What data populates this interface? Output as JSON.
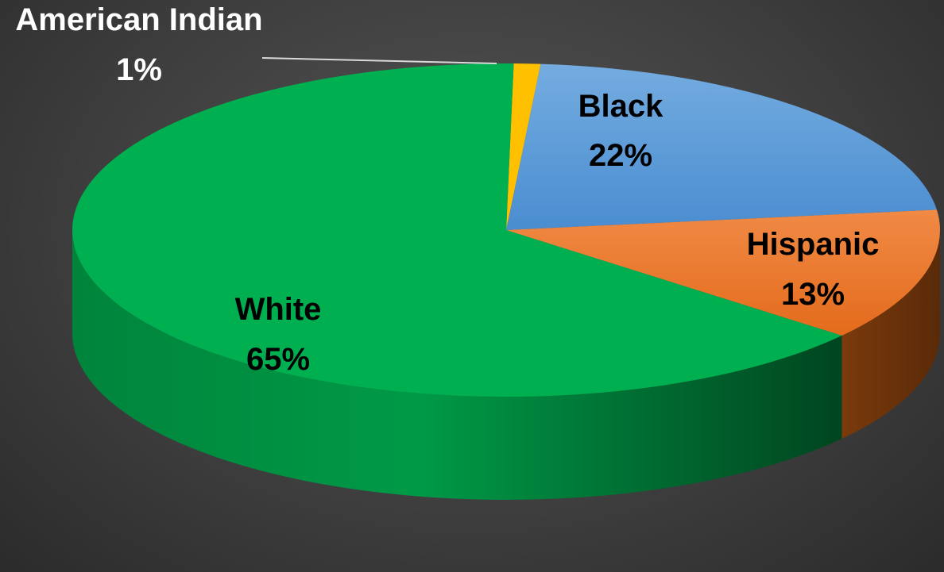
{
  "chart_data": {
    "type": "pie",
    "title": "",
    "style": "3d",
    "slices": [
      {
        "label": "American Indian",
        "value": 1,
        "value_label": "1%",
        "color": "#FFC000",
        "label_color": "#FFFFFF"
      },
      {
        "label": "Black",
        "value": 22,
        "value_label": "22%",
        "color": "#5B9BD5",
        "label_color": "#000000"
      },
      {
        "label": "Hispanic",
        "value": 13,
        "value_label": "13%",
        "color": "#ED7D31",
        "label_color": "#000000"
      },
      {
        "label": "White",
        "value": 65,
        "value_label": "65%",
        "color": "#00B050",
        "label_color": "#000000"
      }
    ],
    "legend": "none",
    "data_labels": "on-slice"
  }
}
